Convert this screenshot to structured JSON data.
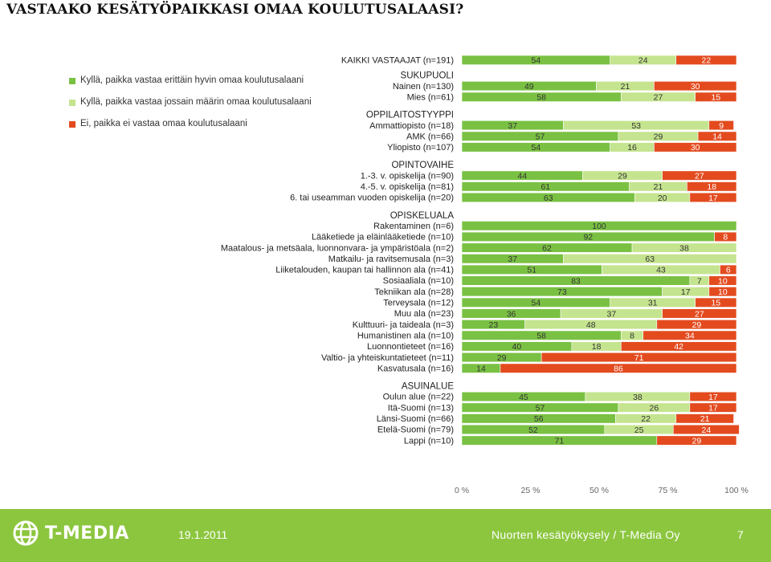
{
  "title": "VASTAAKO KESÄTYÖPAIKKASI OMAA KOULUTUSALAASI?",
  "colors": {
    "very_well": "#7ac143",
    "partly": "#c5e48f",
    "no": "#e34b1f"
  },
  "footer": {
    "brand": "T-MEDIA",
    "date": "19.1.2011",
    "credit": "Nuorten kesätyökysely / T-Media Oy",
    "page": "7"
  },
  "chart_data": {
    "type": "bar",
    "stacked": true,
    "orientation": "horizontal",
    "percent": true,
    "xlim": [
      0,
      100
    ],
    "x_ticks": [
      "0 %",
      "25 %",
      "50 %",
      "75 %",
      "100 %"
    ],
    "legend": [
      {
        "label": "Kyllä, paikka vastaa erittäin hyvin omaa koulutusalaani",
        "color": "#7ac143"
      },
      {
        "label": "Kyllä, paikka vastaa jossain määrin omaa koulutusalaani",
        "color": "#c5e48f"
      },
      {
        "label": "Ei, paikka ei vastaa omaa koulutusalaani",
        "color": "#e34b1f"
      }
    ],
    "groups": [
      {
        "heading": "",
        "rows": [
          {
            "label": "KAIKKI VASTAAJAT (n=191)",
            "values": [
              54,
              24,
              22
            ]
          }
        ]
      },
      {
        "heading": "SUKUPUOLI",
        "rows": [
          {
            "label": "Nainen (n=130)",
            "values": [
              49,
              21,
              30
            ]
          },
          {
            "label": "Mies (n=61)",
            "values": [
              58,
              27,
              15
            ]
          }
        ]
      },
      {
        "heading": "OPPILAITOSTYYPPI",
        "rows": [
          {
            "label": "Ammattiopisto (n=18)",
            "values": [
              37,
              53,
              9
            ]
          },
          {
            "label": "AMK (n=66)",
            "values": [
              57,
              29,
              14
            ]
          },
          {
            "label": "Yliopisto (n=107)",
            "values": [
              54,
              16,
              30
            ]
          }
        ]
      },
      {
        "heading": "OPINTOVAIHE",
        "rows": [
          {
            "label": "1.-3. v. opiskelija (n=90)",
            "values": [
              44,
              29,
              27
            ]
          },
          {
            "label": "4.-5. v. opiskelija (n=81)",
            "values": [
              61,
              21,
              18
            ]
          },
          {
            "label": "6. tai useamman vuoden opiskelija (n=20)",
            "values": [
              63,
              20,
              17
            ]
          }
        ]
      },
      {
        "heading": "OPISKELUALA",
        "rows": [
          {
            "label": "Rakentaminen (n=6)",
            "values": [
              100,
              0,
              0
            ]
          },
          {
            "label": "Lääketiede ja eläinlääketiede (n=10)",
            "values": [
              92,
              0,
              8
            ]
          },
          {
            "label": "Maatalous- ja metsäala, luonnonvara- ja ympäristöala (n=2)",
            "values": [
              62,
              38,
              0
            ]
          },
          {
            "label": "Matkailu- ja ravitsemusala (n=3)",
            "values": [
              37,
              63,
              0
            ]
          },
          {
            "label": "Liiketalouden, kaupan tai hallinnon ala (n=41)",
            "values": [
              51,
              43,
              6
            ]
          },
          {
            "label": "Sosiaaliala (n=10)",
            "values": [
              83,
              7,
              10
            ]
          },
          {
            "label": "Tekniikan ala (n=28)",
            "values": [
              73,
              17,
              10
            ]
          },
          {
            "label": "Terveysala (n=12)",
            "values": [
              54,
              31,
              15
            ]
          },
          {
            "label": "Muu ala (n=23)",
            "values": [
              36,
              37,
              27
            ]
          },
          {
            "label": "Kulttuuri- ja taideala (n=3)",
            "values": [
              23,
              48,
              29
            ]
          },
          {
            "label": "Humanistinen ala (n=10)",
            "values": [
              58,
              8,
              34
            ]
          },
          {
            "label": "Luonnontieteet (n=16)",
            "values": [
              40,
              18,
              42
            ]
          },
          {
            "label": "Valtio- ja yhteiskuntatieteet (n=11)",
            "values": [
              29,
              0,
              71
            ]
          },
          {
            "label": "Kasvatusala (n=16)",
            "values": [
              14,
              0,
              86
            ]
          }
        ]
      },
      {
        "heading": "ASUINALUE",
        "rows": [
          {
            "label": "Oulun alue (n=22)",
            "values": [
              45,
              38,
              17
            ]
          },
          {
            "label": "Itä-Suomi (n=13)",
            "values": [
              57,
              26,
              17
            ]
          },
          {
            "label": "Länsi-Suomi (n=66)",
            "values": [
              56,
              22,
              21
            ]
          },
          {
            "label": "Etelä-Suomi (n=79)",
            "values": [
              52,
              25,
              24
            ]
          },
          {
            "label": "Lappi (n=10)",
            "values": [
              71,
              0,
              29
            ]
          }
        ]
      }
    ]
  }
}
